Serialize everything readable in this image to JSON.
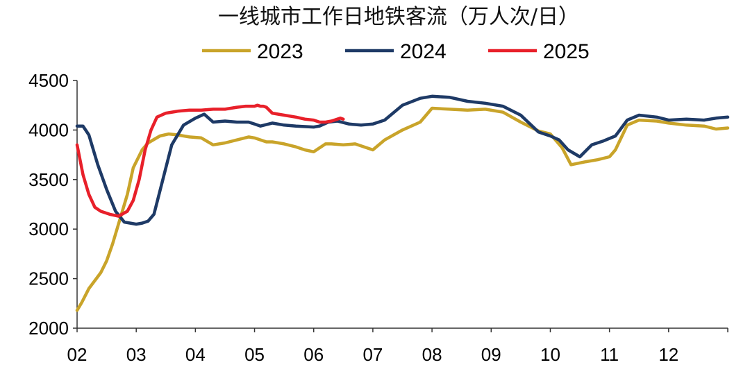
{
  "chart_data": {
    "type": "line",
    "title": "一线城市工作日地铁客流（万人次/日）",
    "xlabel": "",
    "ylabel": "",
    "ylim": [
      2000,
      4500
    ],
    "yticks": [
      "2000",
      "2500",
      "3000",
      "3500",
      "4000",
      "4500"
    ],
    "xticks": [
      "02",
      "03",
      "04",
      "05",
      "06",
      "07",
      "08",
      "09",
      "10",
      "11",
      "12"
    ],
    "grid": false,
    "legend_position": "top",
    "series": [
      {
        "name": "2023",
        "color": "#C9A42A",
        "x": [
          2.0,
          2.08,
          2.2,
          2.4,
          2.5,
          2.6,
          2.7,
          2.85,
          2.95,
          3.1,
          3.2,
          3.4,
          3.55,
          3.7,
          3.9,
          4.1,
          4.3,
          4.5,
          4.7,
          4.9,
          5.0,
          5.2,
          5.3,
          5.5,
          5.7,
          5.85,
          6.0,
          6.2,
          6.3,
          6.5,
          6.7,
          6.8,
          7.0,
          7.2,
          7.5,
          7.8,
          8.0,
          8.3,
          8.6,
          8.9,
          9.2,
          9.5,
          9.8,
          10.0,
          10.2,
          10.35,
          10.6,
          10.8,
          11.0,
          11.1,
          11.3,
          11.5,
          11.8,
          12.0,
          12.3,
          12.6,
          12.8,
          13.0
        ],
        "y": [
          2180,
          2260,
          2400,
          2560,
          2680,
          2850,
          3050,
          3350,
          3620,
          3800,
          3870,
          3940,
          3960,
          3950,
          3930,
          3920,
          3850,
          3870,
          3900,
          3930,
          3920,
          3880,
          3880,
          3860,
          3830,
          3800,
          3780,
          3860,
          3860,
          3850,
          3860,
          3840,
          3800,
          3900,
          4000,
          4080,
          4220,
          4210,
          4200,
          4210,
          4180,
          4080,
          3990,
          3960,
          3820,
          3650,
          3680,
          3700,
          3730,
          3800,
          4050,
          4100,
          4090,
          4070,
          4050,
          4040,
          4010,
          4020
        ]
      },
      {
        "name": "2024",
        "color": "#1E3A66",
        "x": [
          2.0,
          2.1,
          2.2,
          2.35,
          2.5,
          2.65,
          2.8,
          2.9,
          3.0,
          3.1,
          3.2,
          3.3,
          3.45,
          3.6,
          3.8,
          4.0,
          4.15,
          4.3,
          4.5,
          4.7,
          4.9,
          5.0,
          5.1,
          5.3,
          5.5,
          5.7,
          6.0,
          6.1,
          6.25,
          6.4,
          6.6,
          6.8,
          7.0,
          7.2,
          7.5,
          7.8,
          8.0,
          8.3,
          8.6,
          8.9,
          9.2,
          9.5,
          9.8,
          10.0,
          10.15,
          10.3,
          10.5,
          10.7,
          10.9,
          11.1,
          11.3,
          11.5,
          11.8,
          12.0,
          12.3,
          12.6,
          12.8,
          13.0
        ],
        "y": [
          4040,
          4040,
          3950,
          3650,
          3400,
          3180,
          3070,
          3060,
          3050,
          3060,
          3080,
          3150,
          3500,
          3850,
          4050,
          4120,
          4160,
          4080,
          4090,
          4080,
          4080,
          4060,
          4040,
          4070,
          4050,
          4040,
          4030,
          4040,
          4080,
          4090,
          4060,
          4050,
          4060,
          4100,
          4250,
          4320,
          4340,
          4330,
          4290,
          4270,
          4240,
          4150,
          3980,
          3940,
          3900,
          3800,
          3730,
          3850,
          3890,
          3940,
          4100,
          4150,
          4130,
          4100,
          4110,
          4100,
          4120,
          4130
        ]
      },
      {
        "name": "2025",
        "color": "#E8202A",
        "x": [
          2.0,
          2.1,
          2.2,
          2.3,
          2.4,
          2.55,
          2.7,
          2.85,
          2.95,
          3.05,
          3.15,
          3.25,
          3.35,
          3.5,
          3.7,
          3.9,
          4.1,
          4.3,
          4.5,
          4.7,
          4.85,
          5.0,
          5.05,
          5.1,
          5.15,
          5.2,
          5.3,
          5.5,
          5.7,
          5.85,
          6.0,
          6.1,
          6.2,
          6.3,
          6.45,
          6.5
        ],
        "y": [
          3850,
          3550,
          3350,
          3220,
          3180,
          3150,
          3130,
          3180,
          3290,
          3500,
          3800,
          4000,
          4130,
          4170,
          4190,
          4200,
          4200,
          4210,
          4210,
          4230,
          4240,
          4240,
          4250,
          4240,
          4240,
          4230,
          4170,
          4150,
          4130,
          4110,
          4100,
          4080,
          4080,
          4090,
          4120,
          4110
        ]
      }
    ]
  }
}
